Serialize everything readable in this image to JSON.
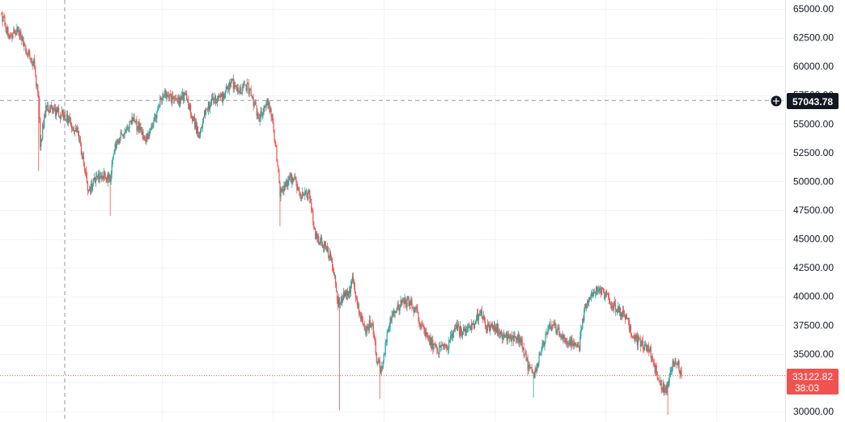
{
  "chart_data": {
    "type": "candlestick",
    "title": "",
    "ylabel": "",
    "xlabel": "",
    "ylim": [
      29600,
      65800
    ],
    "y_ticks": [
      "65000.00",
      "62500.00",
      "60000.00",
      "57500.00",
      "55000.00",
      "52500.00",
      "50000.00",
      "47500.00",
      "45000.00",
      "42500.00",
      "40000.00",
      "37500.00",
      "35000.00",
      "32500.00",
      "30000.00"
    ],
    "grid": true,
    "crosshair_price": 57043.78,
    "crosshair_price_label": "57043.78",
    "last_price": 33122.82,
    "last_price_label": "33122.82",
    "countdown_label": "38:03",
    "up_color": "#26a69a",
    "down_color": "#ef5350",
    "series": [
      {
        "i": 0,
        "close": 64500
      },
      {
        "i": 10,
        "close": 62500
      },
      {
        "i": 20,
        "close": 63300
      },
      {
        "i": 30,
        "close": 61400
      },
      {
        "i": 40,
        "close": 60300
      },
      {
        "i": 46,
        "close": 57000
      },
      {
        "i": 48,
        "close": 53200
      },
      {
        "i": 55,
        "close": 56300
      },
      {
        "i": 65,
        "close": 56200
      },
      {
        "i": 75,
        "close": 55800
      },
      {
        "i": 85,
        "close": 55200
      },
      {
        "i": 95,
        "close": 54200
      },
      {
        "i": 100,
        "close": 52300
      },
      {
        "i": 108,
        "close": 49200
      },
      {
        "i": 115,
        "close": 50000
      },
      {
        "i": 125,
        "close": 50500
      },
      {
        "i": 135,
        "close": 50300
      },
      {
        "i": 140,
        "close": 53000
      },
      {
        "i": 150,
        "close": 54200
      },
      {
        "i": 160,
        "close": 55300
      },
      {
        "i": 170,
        "close": 54800
      },
      {
        "i": 180,
        "close": 53700
      },
      {
        "i": 190,
        "close": 55200
      },
      {
        "i": 200,
        "close": 57700
      },
      {
        "i": 210,
        "close": 57100
      },
      {
        "i": 220,
        "close": 56900
      },
      {
        "i": 228,
        "close": 57700
      },
      {
        "i": 235,
        "close": 56100
      },
      {
        "i": 245,
        "close": 54000
      },
      {
        "i": 255,
        "close": 56600
      },
      {
        "i": 265,
        "close": 57000
      },
      {
        "i": 275,
        "close": 57300
      },
      {
        "i": 285,
        "close": 58700
      },
      {
        "i": 295,
        "close": 57800
      },
      {
        "i": 305,
        "close": 58300
      },
      {
        "i": 312,
        "close": 57200
      },
      {
        "i": 320,
        "close": 55500
      },
      {
        "i": 330,
        "close": 57100
      },
      {
        "i": 336,
        "close": 55800
      },
      {
        "i": 342,
        "close": 52000
      },
      {
        "i": 346,
        "close": 48900
      },
      {
        "i": 352,
        "close": 49800
      },
      {
        "i": 362,
        "close": 50400
      },
      {
        "i": 372,
        "close": 48900
      },
      {
        "i": 382,
        "close": 48800
      },
      {
        "i": 390,
        "close": 45300
      },
      {
        "i": 400,
        "close": 44600
      },
      {
        "i": 410,
        "close": 43400
      },
      {
        "i": 418,
        "close": 39500
      },
      {
        "i": 424,
        "close": 40000
      },
      {
        "i": 430,
        "close": 40100
      },
      {
        "i": 437,
        "close": 41600
      },
      {
        "i": 444,
        "close": 38500
      },
      {
        "i": 452,
        "close": 37200
      },
      {
        "i": 460,
        "close": 37800
      },
      {
        "i": 466,
        "close": 34700
      },
      {
        "i": 472,
        "close": 33500
      },
      {
        "i": 478,
        "close": 36300
      },
      {
        "i": 486,
        "close": 38700
      },
      {
        "i": 495,
        "close": 39200
      },
      {
        "i": 505,
        "close": 39600
      },
      {
        "i": 515,
        "close": 38700
      },
      {
        "i": 525,
        "close": 36800
      },
      {
        "i": 535,
        "close": 35800
      },
      {
        "i": 545,
        "close": 35300
      },
      {
        "i": 555,
        "close": 35800
      },
      {
        "i": 565,
        "close": 37300
      },
      {
        "i": 575,
        "close": 36700
      },
      {
        "i": 585,
        "close": 37400
      },
      {
        "i": 595,
        "close": 38700
      },
      {
        "i": 605,
        "close": 37100
      },
      {
        "i": 615,
        "close": 37300
      },
      {
        "i": 625,
        "close": 36400
      },
      {
        "i": 635,
        "close": 36300
      },
      {
        "i": 645,
        "close": 36300
      },
      {
        "i": 655,
        "close": 33800
      },
      {
        "i": 662,
        "close": 33200
      },
      {
        "i": 670,
        "close": 35300
      },
      {
        "i": 680,
        "close": 37400
      },
      {
        "i": 690,
        "close": 37200
      },
      {
        "i": 700,
        "close": 36100
      },
      {
        "i": 710,
        "close": 36000
      },
      {
        "i": 718,
        "close": 35700
      },
      {
        "i": 725,
        "close": 39200
      },
      {
        "i": 735,
        "close": 40300
      },
      {
        "i": 745,
        "close": 40500
      },
      {
        "i": 755,
        "close": 39700
      },
      {
        "i": 765,
        "close": 38800
      },
      {
        "i": 775,
        "close": 38200
      },
      {
        "i": 785,
        "close": 36500
      },
      {
        "i": 795,
        "close": 35900
      },
      {
        "i": 805,
        "close": 35400
      },
      {
        "i": 812,
        "close": 33800
      },
      {
        "i": 818,
        "close": 32500
      },
      {
        "i": 826,
        "close": 31800
      },
      {
        "i": 832,
        "close": 33800
      },
      {
        "i": 838,
        "close": 34600
      },
      {
        "i": 845,
        "close": 33122
      }
    ]
  }
}
